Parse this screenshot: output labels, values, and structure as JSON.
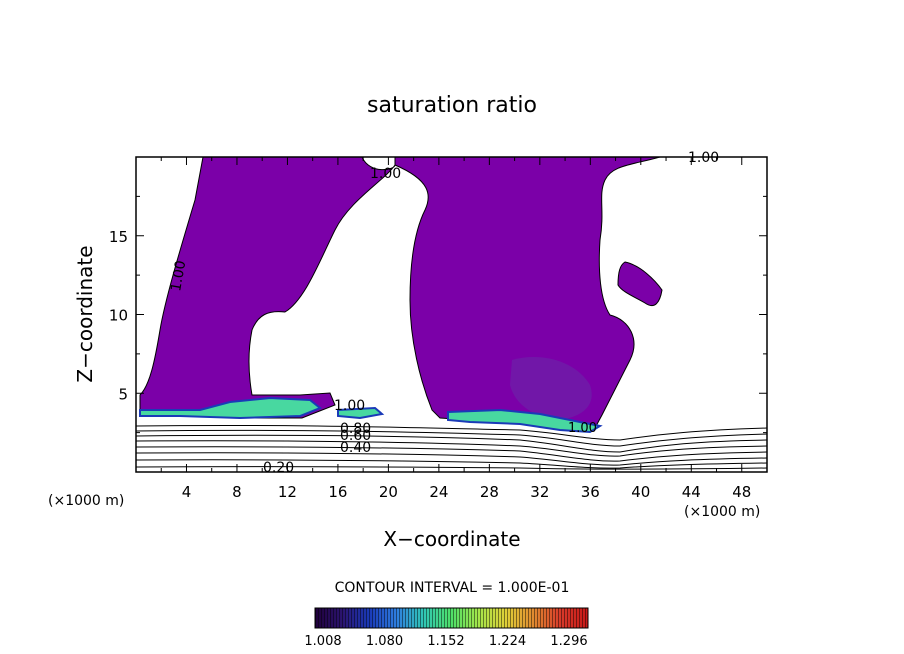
{
  "chart_data": {
    "type": "contour",
    "title": "saturation ratio",
    "xlabel": "X−coordinate",
    "ylabel": "Z−coordinate",
    "x_unit_label": "(×1000 m)",
    "y_unit_label": "(×1000 m)",
    "xlim": [
      0,
      50
    ],
    "ylim": [
      0,
      20
    ],
    "x_ticks": [
      4,
      8,
      12,
      16,
      20,
      24,
      28,
      32,
      36,
      40,
      44,
      48
    ],
    "y_ticks": [
      5,
      10,
      15
    ],
    "contour_interval_text": "CONTOUR INTERVAL = 1.000E-01",
    "contour_labels": [
      {
        "text": "1.00",
        "x": 20,
        "z": 18.6
      },
      {
        "text": "1.00",
        "x": 46.5,
        "z": 19.0
      },
      {
        "text": "1.00",
        "x": 3.0,
        "z": 12.4
      },
      {
        "text": "1.00",
        "x": 17.0,
        "z": 4.2
      },
      {
        "text": "1.00",
        "x": 35.5,
        "z": 2.7
      },
      {
        "text": "0.80",
        "x": 17.0,
        "z": 2.7
      },
      {
        "text": "0.60",
        "x": 17.0,
        "z": 2.2
      },
      {
        "text": "0.40",
        "x": 17.0,
        "z": 1.6
      },
      {
        "text": "0.20",
        "x": 11.5,
        "z": 0.25
      }
    ],
    "colorbar": {
      "tick_labels": [
        "1.008",
        "1.080",
        "1.152",
        "1.224",
        "1.296"
      ],
      "colors": [
        "#20003a",
        "#2b1470",
        "#1a3ab8",
        "#2f7fe0",
        "#31c8b4",
        "#4fe068",
        "#a6e64a",
        "#e0d038",
        "#e08a30",
        "#d83a2a",
        "#c81818"
      ]
    },
    "fill_color_main": "#7b00a8"
  }
}
